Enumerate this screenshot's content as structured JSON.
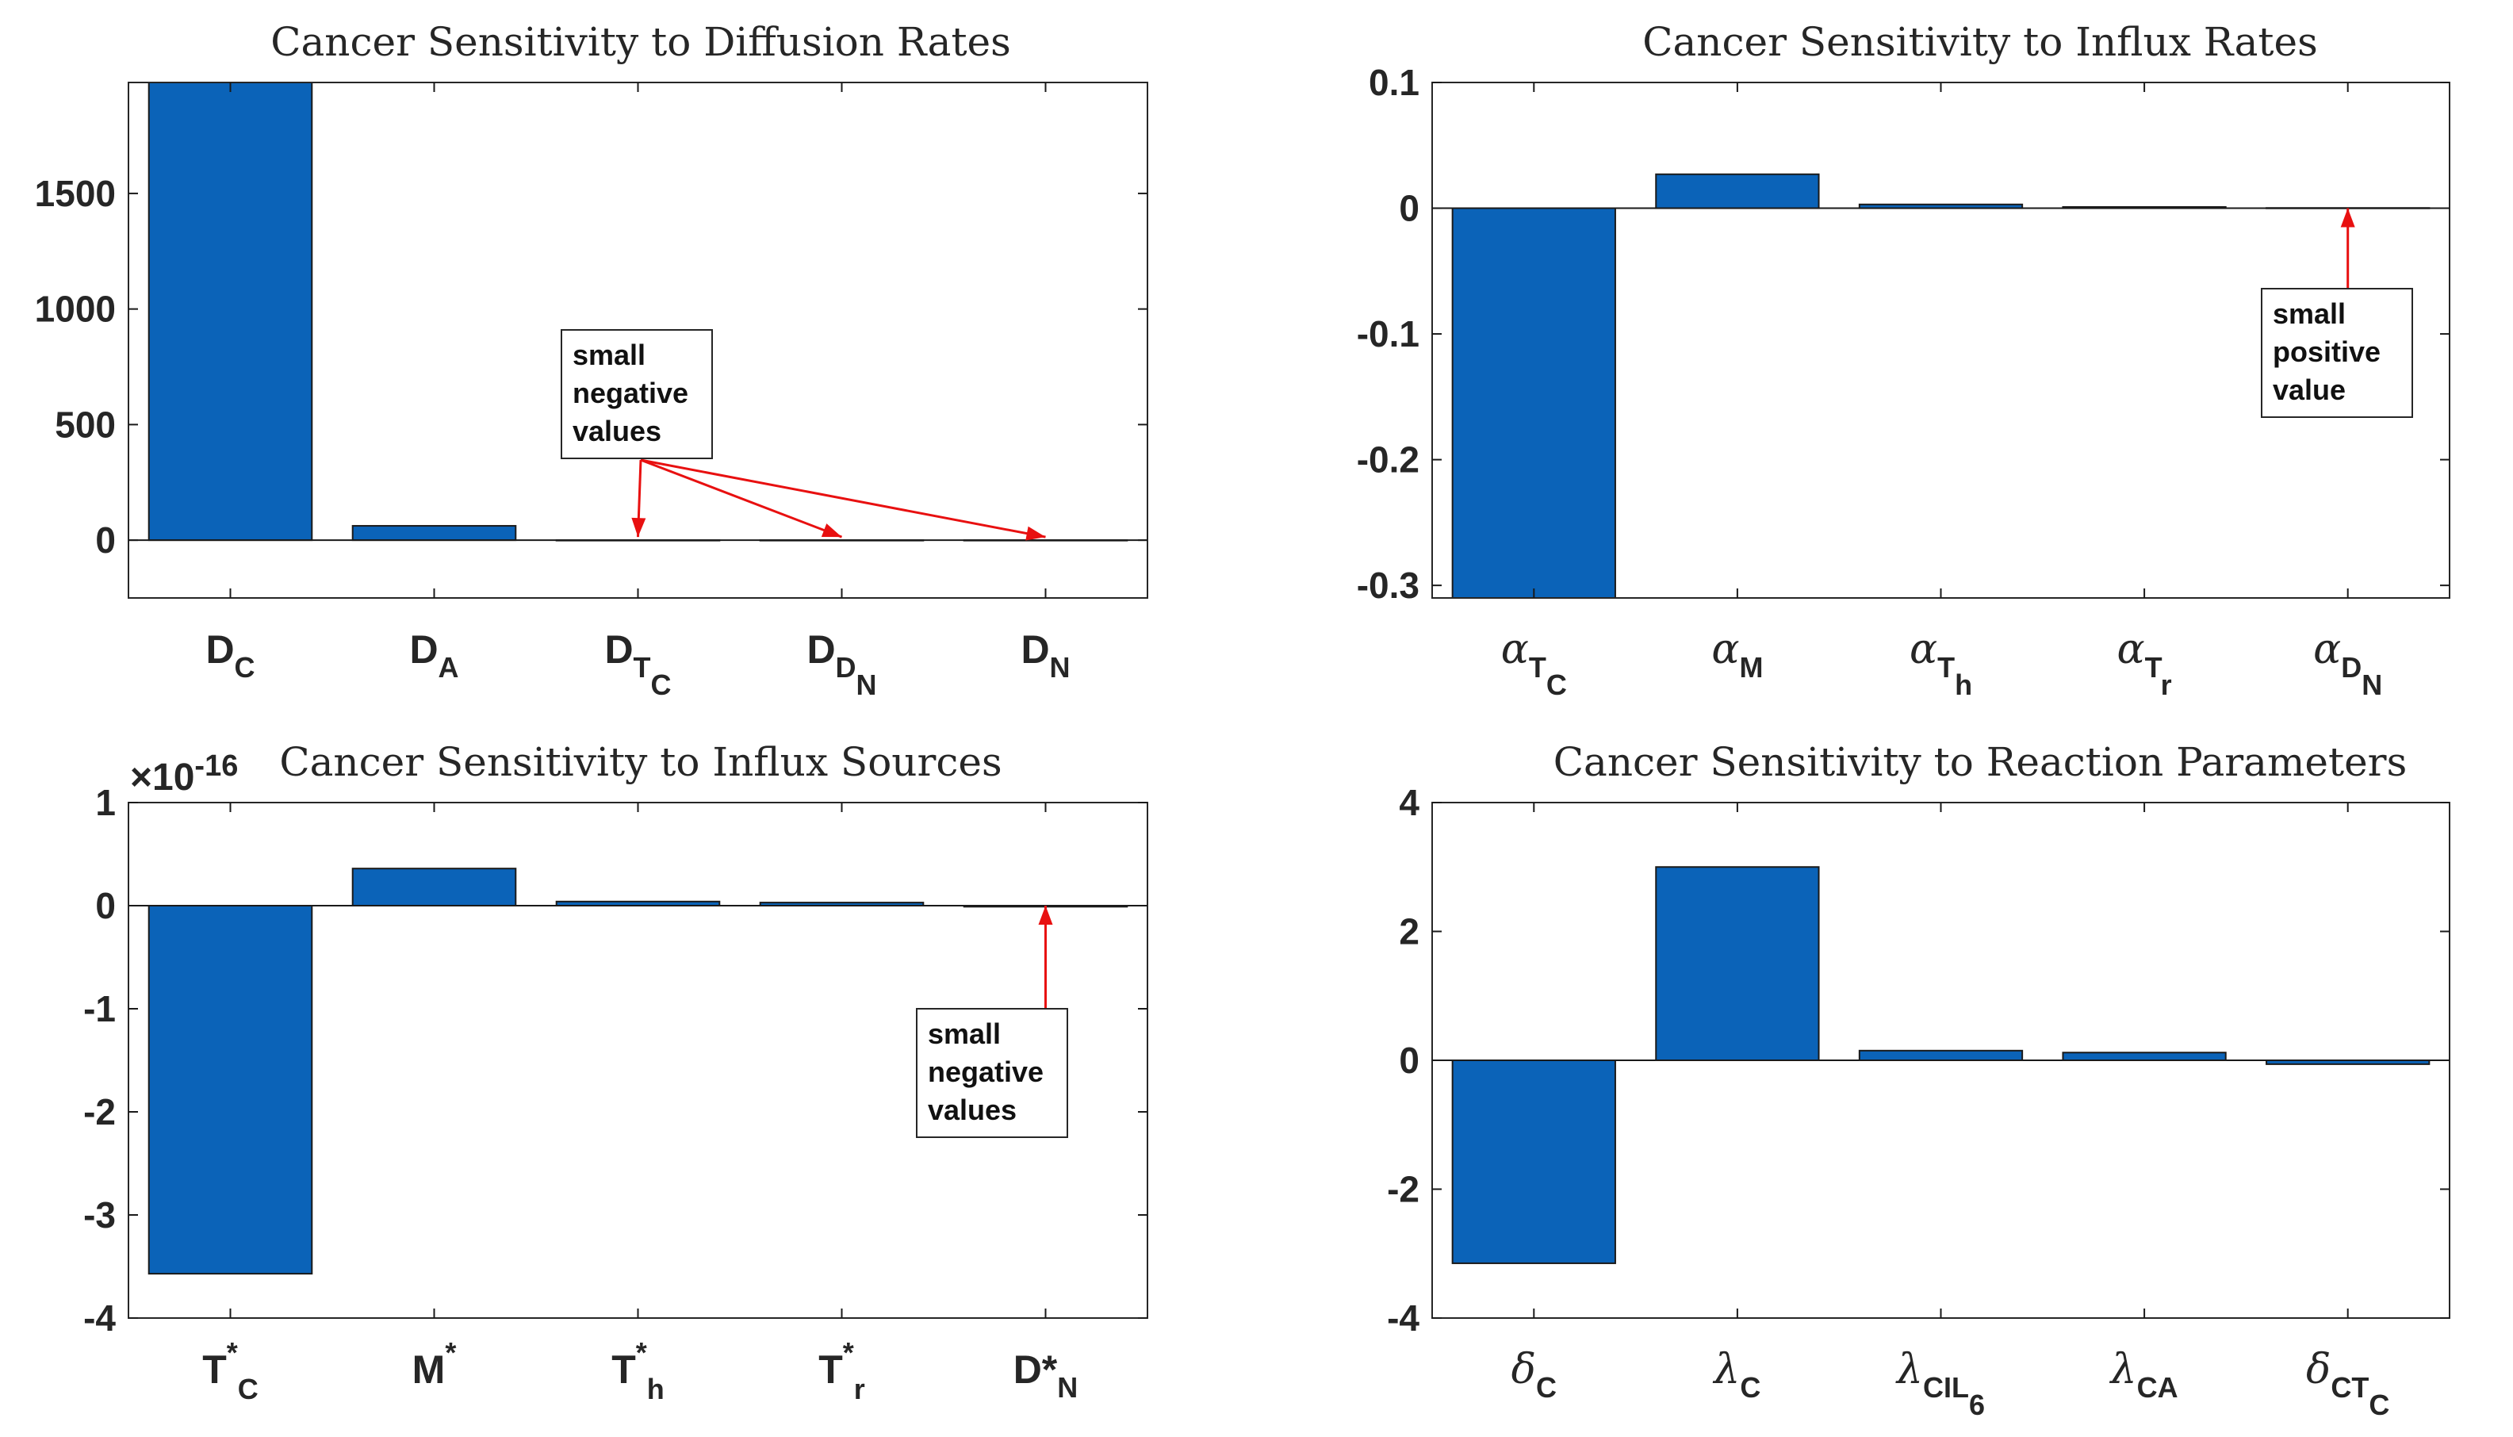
{
  "chart_data": [
    {
      "type": "bar",
      "title": "Cancer Sensitivity to Diffusion Rates",
      "categories": [
        "D_C",
        "D_A",
        "D_T_C",
        "D_D_N",
        "D_N"
      ],
      "category_labels": [
        {
          "main": "D",
          "sub": "C"
        },
        {
          "main": "D",
          "sub": "A"
        },
        {
          "main": "D",
          "sub": "T",
          "subsub": "C"
        },
        {
          "main": "D",
          "sub": "D",
          "subsub": "N"
        },
        {
          "main": "D",
          "sub": "N"
        }
      ],
      "values": [
        2000,
        62,
        -1,
        -0.5,
        -0.3
      ],
      "ylim": [
        -250,
        1980
      ],
      "yticks": [
        0,
        500,
        1000,
        1500
      ],
      "ytick_labels": [
        "0",
        "500",
        "1000",
        "1500"
      ],
      "annotation": {
        "lines": [
          "small",
          "negative",
          "values"
        ],
        "targets": [
          2,
          3,
          4
        ]
      }
    },
    {
      "type": "bar",
      "title": "Cancer Sensitivity to Influx Rates",
      "categories": [
        "alpha_T_C",
        "alpha_M",
        "alpha_T_h",
        "alpha_T_r",
        "alpha_D_N"
      ],
      "category_labels": [
        {
          "main": "α",
          "greek": true,
          "sub": "T",
          "subsub": "C"
        },
        {
          "main": "α",
          "greek": true,
          "sub": "M"
        },
        {
          "main": "α",
          "greek": true,
          "sub": "T",
          "subsub": "h"
        },
        {
          "main": "α",
          "greek": true,
          "sub": "T",
          "subsub": "r"
        },
        {
          "main": "α",
          "greek": true,
          "sub": "D",
          "subsub": "N"
        }
      ],
      "values": [
        -0.31,
        0.027,
        0.003,
        0.001,
        0.0002
      ],
      "ylim": [
        -0.31,
        0.1
      ],
      "yticks": [
        -0.3,
        -0.2,
        -0.1,
        0,
        0.1
      ],
      "ytick_labels": [
        "-0.3",
        "-0.2",
        "-0.1",
        "0",
        "0.1"
      ],
      "annotation": {
        "lines": [
          "small",
          "positive",
          "value"
        ],
        "targets": [
          4
        ]
      }
    },
    {
      "type": "bar",
      "title": "Cancer Sensitivity to Influx Sources",
      "multiplier": {
        "base": "×10",
        "exp": "-16"
      },
      "categories": [
        "T*_C",
        "M*",
        "T*_h",
        "T*_r",
        "D*_N"
      ],
      "category_labels": [
        {
          "main": "T",
          "sup": "*",
          "sub": "C"
        },
        {
          "main": "M",
          "sup": "*"
        },
        {
          "main": "T",
          "sup": "*",
          "sub": "h"
        },
        {
          "main": "T",
          "sup": "*",
          "sub": "r"
        },
        {
          "main": "D*",
          "sub": "N"
        }
      ],
      "values": [
        -3.57,
        0.36,
        0.04,
        0.03,
        -0.01
      ],
      "ylim": [
        -4,
        1
      ],
      "yticks": [
        -4,
        -3,
        -2,
        -1,
        0,
        1
      ],
      "ytick_labels": [
        "-4",
        "-3",
        "-2",
        "-1",
        "0",
        "1"
      ],
      "annotation": {
        "lines": [
          "small",
          "negative",
          "values"
        ],
        "targets": [
          4
        ]
      }
    },
    {
      "type": "bar",
      "title": "Cancer Sensitivity to Reaction Parameters",
      "categories": [
        "delta_C",
        "lambda_C",
        "lambda_CIL_6",
        "lambda_CA",
        "delta_CT_C"
      ],
      "category_labels": [
        {
          "main": "δ",
          "greek": true,
          "sub": "C"
        },
        {
          "main": "λ",
          "greek": true,
          "sub": "C"
        },
        {
          "main": "λ",
          "greek": true,
          "sub": "CIL",
          "subsub": "6"
        },
        {
          "main": "λ",
          "greek": true,
          "sub": "CA"
        },
        {
          "main": "δ",
          "greek": true,
          "sub": "CT",
          "subsub": "C"
        }
      ],
      "values": [
        -3.15,
        3.0,
        0.15,
        0.12,
        -0.06
      ],
      "ylim": [
        -4,
        4
      ],
      "yticks": [
        -4,
        -2,
        0,
        2,
        4
      ],
      "ytick_labels": [
        "-4",
        "-2",
        "0",
        "2",
        "4"
      ]
    }
  ],
  "colors": {
    "bar": "#0b63b8",
    "annotation_arrow": "#e81010",
    "axis": "#262626"
  }
}
